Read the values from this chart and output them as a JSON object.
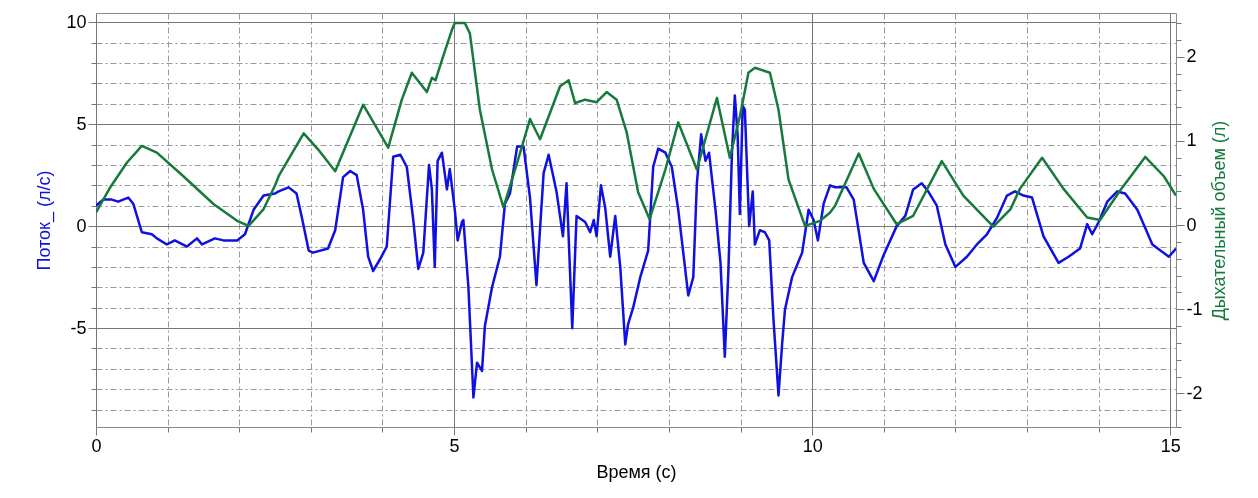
{
  "chart_data": {
    "type": "line",
    "xlabel": "Время (с)",
    "ylabel": "Поток_ (л/с)",
    "y2label": "Дыхательный объем (л)",
    "grid": true,
    "xlim": [
      0,
      15.08
    ],
    "xticks": [
      0,
      {
        "value": 1,
        "label": null
      },
      {
        "value": 2,
        "label": null
      },
      {
        "value": 3,
        "label": null
      },
      {
        "value": 4,
        "label": null
      },
      5,
      {
        "value": 6,
        "label": null
      },
      {
        "value": 7,
        "label": null
      },
      {
        "value": 8,
        "label": null
      },
      {
        "value": 9,
        "label": null
      },
      10,
      {
        "value": 11,
        "label": null
      },
      {
        "value": 12,
        "label": null
      },
      {
        "value": 13,
        "label": null
      },
      {
        "value": 14,
        "label": null
      },
      15
    ],
    "ylim": [
      -9.85,
      10.45
    ],
    "yticks": [
      {
        "value": -9,
        "label": null
      },
      {
        "value": -8,
        "label": null
      },
      {
        "value": -7,
        "label": null
      },
      {
        "value": -6,
        "label": null
      },
      -5,
      {
        "value": -4,
        "label": null
      },
      {
        "value": -3,
        "label": null
      },
      {
        "value": -2,
        "label": null
      },
      {
        "value": -1,
        "label": null
      },
      0,
      {
        "value": 1,
        "label": null
      },
      {
        "value": 2,
        "label": null
      },
      {
        "value": 3,
        "label": null
      },
      {
        "value": 4,
        "label": null
      },
      5,
      {
        "value": 6,
        "label": null
      },
      {
        "value": 7,
        "label": null
      },
      {
        "value": 8,
        "label": null
      },
      {
        "value": 9,
        "label": null
      },
      10
    ],
    "y2lim": [
      -2.4,
      2.52
    ],
    "y2ticks": [
      {
        "value": -2.4,
        "label": null
      },
      {
        "value": -2.2,
        "label": null
      },
      -2,
      {
        "value": -1.8,
        "label": null
      },
      {
        "value": -1.6,
        "label": null
      },
      {
        "value": -1.4,
        "label": null
      },
      {
        "value": -1.2,
        "label": null
      },
      -1,
      {
        "value": -0.8,
        "label": null
      },
      {
        "value": -0.6,
        "label": null
      },
      {
        "value": -0.4,
        "label": null
      },
      {
        "value": -0.2,
        "label": null
      },
      0,
      {
        "value": 0.2,
        "label": null
      },
      {
        "value": 0.4,
        "label": null
      },
      {
        "value": 0.6,
        "label": null
      },
      {
        "value": 0.8,
        "label": null
      },
      1,
      {
        "value": 1.2,
        "label": null
      },
      {
        "value": 1.4,
        "label": null
      },
      {
        "value": 1.6,
        "label": null
      },
      {
        "value": 1.8,
        "label": null
      },
      2,
      {
        "value": 2.2,
        "label": null
      },
      {
        "value": 2.4,
        "label": null
      }
    ],
    "series": [
      {
        "color": "#1010e0",
        "x": [
          0,
          0.1,
          0.22,
          0.31,
          0.45,
          0.52,
          0.64,
          0.78,
          0.85,
          0.99,
          1.1,
          1.27,
          1.41,
          1.48,
          1.66,
          1.78,
          1.97,
          2.08,
          2.2,
          2.34,
          2.5,
          2.55,
          2.69,
          2.8,
          2.87,
          2.97,
          3.03,
          3.24,
          3.34,
          3.45,
          3.55,
          3.64,
          3.73,
          3.8,
          3.87,
          3.97,
          4.06,
          4.15,
          4.25,
          4.34,
          4.43,
          4.5,
          4.57,
          4.65,
          4.69,
          4.73,
          4.77,
          4.83,
          4.9,
          4.94,
          5.01,
          5.05,
          5.11,
          5.13,
          5.2,
          5.27,
          5.32,
          5.39,
          5.43,
          5.53,
          5.64,
          5.71,
          5.78,
          5.88,
          5.97,
          6.06,
          6.15,
          6.25,
          6.32,
          6.43,
          6.52,
          6.57,
          6.65,
          6.71,
          6.83,
          6.9,
          6.95,
          6.99,
          7.05,
          7.11,
          7.18,
          7.25,
          7.32,
          7.39,
          7.43,
          7.5,
          7.6,
          7.71,
          7.78,
          7.85,
          7.95,
          8.04,
          8.13,
          8.27,
          8.34,
          8.39,
          8.45,
          8.51,
          8.56,
          8.65,
          8.72,
          8.78,
          8.83,
          8.88,
          8.92,
          8.96,
          8.99,
          9.03,
          9.06,
          9.12,
          9.17,
          9.2,
          9.27,
          9.34,
          9.4,
          9.46,
          9.53,
          9.58,
          9.62,
          9.72,
          9.86,
          9.95,
          10.02,
          10.08,
          10.16,
          10.25,
          10.32,
          10.48,
          10.58,
          10.72,
          10.86,
          11.0,
          11.18,
          11.3,
          11.41,
          11.53,
          11.62,
          11.74,
          11.86,
          12.0,
          12.16,
          12.3,
          12.44,
          12.58,
          12.72,
          12.83,
          12.95,
          13.07,
          13.23,
          13.44,
          13.58,
          13.74,
          13.84,
          13.91,
          14.0,
          14.12,
          14.26,
          14.37,
          14.54,
          14.75,
          14.98,
          15.08
        ],
        "values": [
          1.0,
          1.3,
          1.3,
          1.2,
          1.4,
          1.1,
          -0.3,
          -0.4,
          -0.6,
          -0.9,
          -0.7,
          -1.0,
          -0.6,
          -0.9,
          -0.6,
          -0.7,
          -0.7,
          -0.4,
          0.8,
          1.5,
          1.6,
          1.7,
          1.9,
          1.6,
          0.5,
          -1.2,
          -1.3,
          -1.1,
          -0.2,
          2.4,
          2.7,
          2.5,
          0.8,
          -1.5,
          -2.2,
          -1.6,
          -1.0,
          3.4,
          3.5,
          2.9,
          0.3,
          -2.1,
          -1.3,
          3.0,
          1.8,
          -2.0,
          3.2,
          3.6,
          1.8,
          2.8,
          0.8,
          -0.7,
          0.2,
          0.3,
          -3.0,
          -8.4,
          -6.7,
          -7.1,
          -4.9,
          -3.0,
          -1.5,
          1.1,
          1.6,
          3.9,
          3.9,
          1.4,
          -2.9,
          2.6,
          3.5,
          1.7,
          -0.5,
          2.1,
          -5.0,
          0.5,
          0.2,
          -0.3,
          0.3,
          -0.5,
          2.0,
          0.9,
          -1.5,
          0.5,
          -2.0,
          -5.8,
          -4.8,
          -4.0,
          -2.5,
          -1.2,
          2.9,
          3.8,
          3.6,
          2.9,
          0.8,
          -3.4,
          -2.5,
          2.1,
          4.5,
          3.2,
          3.6,
          0.8,
          -1.8,
          -6.4,
          -2.2,
          3.6,
          6.4,
          4.4,
          0.6,
          5.9,
          5.7,
          0.0,
          1.7,
          -0.9,
          -0.2,
          -0.3,
          -0.7,
          -4.6,
          -8.3,
          -5.8,
          -4.1,
          -2.5,
          -1.3,
          0.8,
          0.3,
          -0.7,
          1.1,
          2.0,
          1.9,
          1.9,
          1.3,
          -1.8,
          -2.7,
          -1.4,
          0.0,
          0.5,
          1.8,
          2.1,
          1.7,
          1.0,
          -0.9,
          -2.0,
          -1.5,
          -0.9,
          -0.4,
          0.4,
          1.5,
          1.7,
          1.5,
          1.4,
          -0.5,
          -1.8,
          -1.5,
          -1.1,
          0.1,
          -0.4,
          0.2,
          1.2,
          1.7,
          1.6,
          0.8,
          -0.9,
          -1.5,
          -1.1
        ]
      },
      {
        "color": "#167a3c",
        "axis": "y2",
        "x": [
          0,
          0.2,
          0.43,
          0.64,
          0.85,
          1.22,
          1.64,
          1.97,
          2.13,
          2.34,
          2.5,
          2.55,
          2.9,
          3.1,
          3.34,
          3.73,
          4.08,
          4.27,
          4.41,
          4.62,
          4.69,
          4.74,
          4.83,
          4.97,
          5.01,
          5.15,
          5.22,
          5.36,
          5.53,
          5.69,
          5.88,
          6.06,
          6.2,
          6.48,
          6.6,
          6.69,
          6.83,
          6.99,
          7.13,
          7.27,
          7.41,
          7.57,
          7.73,
          7.95,
          8.13,
          8.39,
          8.67,
          8.85,
          8.99,
          9.11,
          9.2,
          9.41,
          9.53,
          9.67,
          9.9,
          10.11,
          10.25,
          10.32,
          10.65,
          10.86,
          11.18,
          11.41,
          11.81,
          12.11,
          12.53,
          12.77,
          12.9,
          13.21,
          13.51,
          13.84,
          14.02,
          14.3,
          14.65,
          14.91,
          15.08
        ],
        "values": [
          0.15,
          0.45,
          0.74,
          0.94,
          0.86,
          0.58,
          0.25,
          0.05,
          -0.01,
          0.19,
          0.47,
          0.58,
          1.09,
          0.9,
          0.64,
          1.43,
          0.92,
          1.49,
          1.81,
          1.58,
          1.75,
          1.72,
          1.96,
          2.32,
          2.4,
          2.4,
          2.28,
          1.37,
          0.66,
          0.21,
          0.74,
          1.26,
          1.02,
          1.65,
          1.72,
          1.45,
          1.49,
          1.46,
          1.58,
          1.49,
          1.1,
          0.39,
          0.07,
          0.66,
          1.22,
          0.66,
          1.51,
          0.8,
          1.29,
          1.81,
          1.87,
          1.81,
          1.37,
          0.54,
          -0.01,
          0.05,
          0.15,
          0.23,
          0.85,
          0.43,
          0.01,
          0.11,
          0.76,
          0.35,
          -0.02,
          0.19,
          0.43,
          0.8,
          0.43,
          0.09,
          0.06,
          0.41,
          0.81,
          0.58,
          0.35
        ]
      }
    ]
  }
}
